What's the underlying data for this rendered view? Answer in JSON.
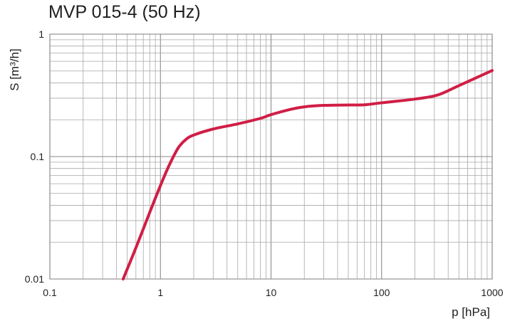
{
  "chart_data": {
    "type": "line",
    "title": "MVP 015-4 (50 Hz)",
    "xlabel": "p  [hPa]",
    "ylabel": "S  [m³/h]",
    "xscale": "log",
    "yscale": "log",
    "xlim": [
      0.1,
      1000
    ],
    "ylim": [
      0.01,
      1
    ],
    "x_tick_labels": [
      "0.1",
      "1",
      "10",
      "100",
      "1000"
    ],
    "y_tick_labels": [
      "0.01",
      "0.1",
      "1"
    ],
    "x_ticks": [
      0.1,
      1,
      10,
      100,
      1000
    ],
    "y_ticks": [
      0.01,
      0.1,
      1
    ],
    "grid": true,
    "series": [
      {
        "color": "#d01e45",
        "points": [
          [
            0.46,
            0.01
          ],
          [
            0.6,
            0.018
          ],
          [
            0.8,
            0.035
          ],
          [
            1.0,
            0.058
          ],
          [
            1.2,
            0.085
          ],
          [
            1.45,
            0.118
          ],
          [
            1.7,
            0.138
          ],
          [
            2.0,
            0.15
          ],
          [
            3.0,
            0.168
          ],
          [
            5.0,
            0.185
          ],
          [
            8.0,
            0.205
          ],
          [
            10.0,
            0.22
          ],
          [
            15.0,
            0.243
          ],
          [
            20.0,
            0.255
          ],
          [
            30.0,
            0.262
          ],
          [
            50.0,
            0.264
          ],
          [
            70.0,
            0.265
          ],
          [
            100.0,
            0.275
          ],
          [
            200.0,
            0.295
          ],
          [
            320.0,
            0.318
          ],
          [
            500.0,
            0.38
          ],
          [
            1000.0,
            0.505
          ]
        ]
      }
    ]
  }
}
